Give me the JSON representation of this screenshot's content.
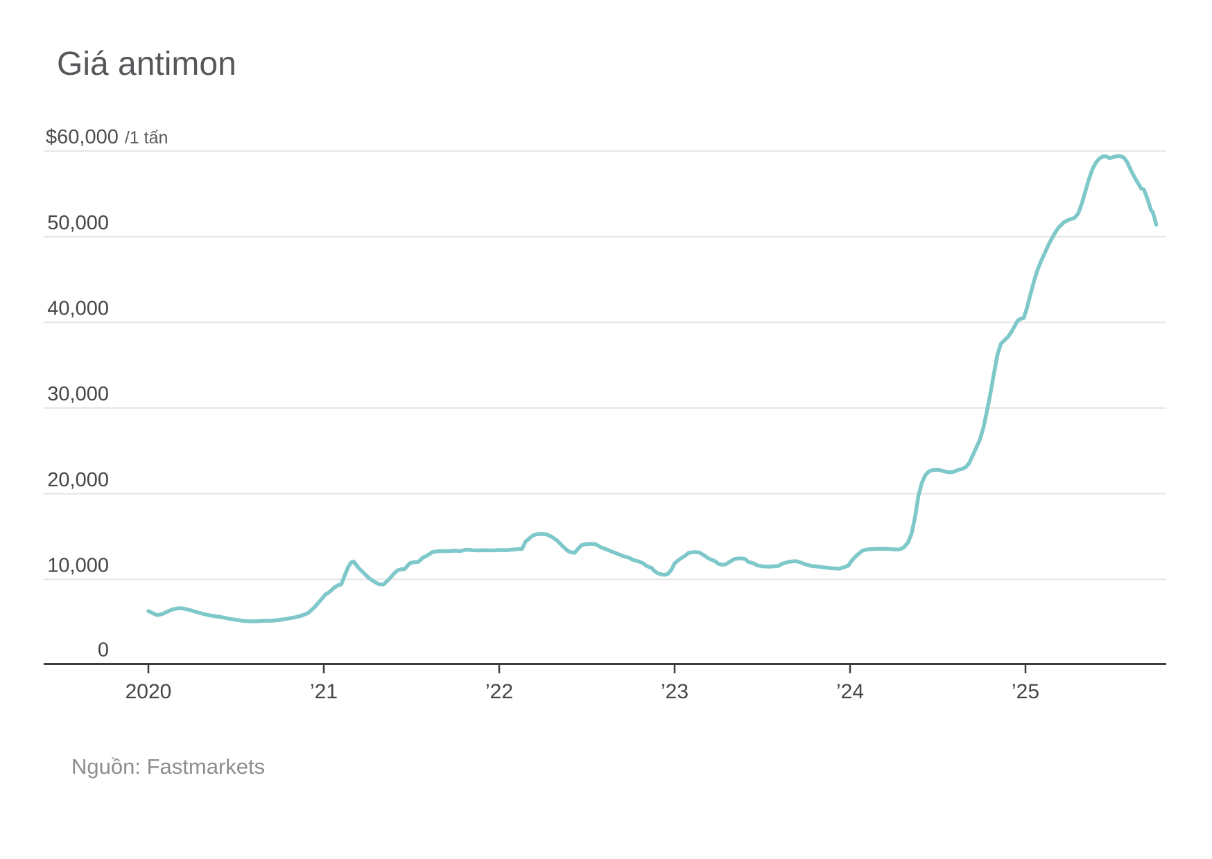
{
  "title": "Giá antimon",
  "source": {
    "text": "Nguồn: Fastmarkets"
  },
  "y_axis": {
    "top_label_value": "$60,000",
    "top_label_unit": "/1 tấn",
    "labels": [
      "50,000",
      "40,000",
      "30,000",
      "20,000",
      "10,000",
      "0"
    ]
  },
  "x_axis": {
    "labels": [
      "2020",
      "’21",
      "’22",
      "’23",
      "’24",
      "’25"
    ]
  },
  "colors": {
    "line": "#7ec8ca",
    "grid": "#e6e6e6",
    "axis": "#3d3d3d",
    "title_text": "#55575b",
    "tick_text": "#454545",
    "source_text": "#8e8e8e"
  },
  "chart_data": {
    "type": "line",
    "title": "Giá antimon",
    "ylabel": "$ /1 tấn",
    "ylim": [
      0,
      60000
    ],
    "ytick_values": [
      0,
      10000,
      20000,
      30000,
      40000,
      50000,
      60000
    ],
    "xtick_labels": [
      "2020",
      "’21",
      "’22",
      "’23",
      "’24",
      "’25"
    ],
    "grid": "horizontal",
    "legend": "none",
    "source": "Nguồn: Fastmarkets",
    "series": [
      {
        "name": "Giá antimon ($ / 1 tấn)",
        "x_unit": "decimal years since 2020-01-01",
        "points": [
          [
            0.0,
            6300
          ],
          [
            0.03,
            6000
          ],
          [
            0.05,
            5830
          ],
          [
            0.08,
            5950
          ],
          [
            0.11,
            6250
          ],
          [
            0.14,
            6500
          ],
          [
            0.17,
            6630
          ],
          [
            0.2,
            6600
          ],
          [
            0.24,
            6400
          ],
          [
            0.28,
            6150
          ],
          [
            0.31,
            5980
          ],
          [
            0.35,
            5800
          ],
          [
            0.38,
            5700
          ],
          [
            0.42,
            5580
          ],
          [
            0.46,
            5400
          ],
          [
            0.5,
            5280
          ],
          [
            0.54,
            5150
          ],
          [
            0.58,
            5100
          ],
          [
            0.62,
            5120
          ],
          [
            0.66,
            5170
          ],
          [
            0.7,
            5170
          ],
          [
            0.74,
            5250
          ],
          [
            0.79,
            5400
          ],
          [
            0.83,
            5550
          ],
          [
            0.87,
            5740
          ],
          [
            0.91,
            6060
          ],
          [
            0.945,
            6710
          ],
          [
            0.98,
            7520
          ],
          [
            1.01,
            8240
          ],
          [
            1.03,
            8490
          ],
          [
            1.06,
            9050
          ],
          [
            1.08,
            9300
          ],
          [
            1.1,
            9430
          ],
          [
            1.12,
            10500
          ],
          [
            1.14,
            11470
          ],
          [
            1.155,
            11960
          ],
          [
            1.17,
            12080
          ],
          [
            1.2,
            11300
          ],
          [
            1.24,
            10500
          ],
          [
            1.26,
            10100
          ],
          [
            1.29,
            9700
          ],
          [
            1.315,
            9420
          ],
          [
            1.34,
            9400
          ],
          [
            1.37,
            9970
          ],
          [
            1.4,
            10670
          ],
          [
            1.42,
            11050
          ],
          [
            1.44,
            11170
          ],
          [
            1.46,
            11200
          ],
          [
            1.49,
            11880
          ],
          [
            1.51,
            12000
          ],
          [
            1.54,
            12050
          ],
          [
            1.565,
            12530
          ],
          [
            1.59,
            12790
          ],
          [
            1.62,
            13200
          ],
          [
            1.66,
            13300
          ],
          [
            1.7,
            13280
          ],
          [
            1.74,
            13350
          ],
          [
            1.78,
            13300
          ],
          [
            1.81,
            13460
          ],
          [
            1.85,
            13400
          ],
          [
            1.88,
            13380
          ],
          [
            1.92,
            13400
          ],
          [
            1.96,
            13380
          ],
          [
            2.0,
            13420
          ],
          [
            2.04,
            13400
          ],
          [
            2.09,
            13500
          ],
          [
            2.13,
            13550
          ],
          [
            2.15,
            14400
          ],
          [
            2.19,
            15100
          ],
          [
            2.21,
            15250
          ],
          [
            2.24,
            15300
          ],
          [
            2.27,
            15250
          ],
          [
            2.3,
            14960
          ],
          [
            2.33,
            14550
          ],
          [
            2.36,
            13900
          ],
          [
            2.39,
            13340
          ],
          [
            2.41,
            13150
          ],
          [
            2.43,
            13100
          ],
          [
            2.45,
            13590
          ],
          [
            2.47,
            14000
          ],
          [
            2.49,
            14100
          ],
          [
            2.52,
            14150
          ],
          [
            2.55,
            14100
          ],
          [
            2.58,
            13750
          ],
          [
            2.6,
            13600
          ],
          [
            2.63,
            13340
          ],
          [
            2.66,
            13100
          ],
          [
            2.68,
            12940
          ],
          [
            2.71,
            12690
          ],
          [
            2.74,
            12530
          ],
          [
            2.76,
            12290
          ],
          [
            2.79,
            12120
          ],
          [
            2.82,
            11880
          ],
          [
            2.84,
            11560
          ],
          [
            2.87,
            11310
          ],
          [
            2.88,
            11070
          ],
          [
            2.9,
            10750
          ],
          [
            2.92,
            10600
          ],
          [
            2.94,
            10530
          ],
          [
            2.96,
            10620
          ],
          [
            2.98,
            11070
          ],
          [
            2.99,
            11470
          ],
          [
            3.0,
            11880
          ],
          [
            3.03,
            12370
          ],
          [
            3.06,
            12770
          ],
          [
            3.08,
            13100
          ],
          [
            3.11,
            13180
          ],
          [
            3.14,
            13150
          ],
          [
            3.17,
            12770
          ],
          [
            3.2,
            12370
          ],
          [
            3.23,
            12120
          ],
          [
            3.25,
            11800
          ],
          [
            3.27,
            11720
          ],
          [
            3.29,
            11750
          ],
          [
            3.32,
            12120
          ],
          [
            3.34,
            12370
          ],
          [
            3.37,
            12450
          ],
          [
            3.4,
            12400
          ],
          [
            3.42,
            12040
          ],
          [
            3.45,
            11880
          ],
          [
            3.47,
            11640
          ],
          [
            3.5,
            11520
          ],
          [
            3.54,
            11480
          ],
          [
            3.59,
            11560
          ],
          [
            3.62,
            11880
          ],
          [
            3.65,
            12040
          ],
          [
            3.68,
            12120
          ],
          [
            3.7,
            12100
          ],
          [
            3.74,
            11800
          ],
          [
            3.78,
            11560
          ],
          [
            3.82,
            11480
          ],
          [
            3.86,
            11380
          ],
          [
            3.9,
            11290
          ],
          [
            3.94,
            11250
          ],
          [
            3.97,
            11450
          ],
          [
            3.99,
            11600
          ],
          [
            4.01,
            12200
          ],
          [
            4.03,
            12650
          ],
          [
            4.05,
            13000
          ],
          [
            4.07,
            13350
          ],
          [
            4.1,
            13500
          ],
          [
            4.14,
            13550
          ],
          [
            4.18,
            13560
          ],
          [
            4.22,
            13550
          ],
          [
            4.25,
            13500
          ],
          [
            4.27,
            13480
          ],
          [
            4.29,
            13550
          ],
          [
            4.31,
            13800
          ],
          [
            4.33,
            14300
          ],
          [
            4.35,
            15300
          ],
          [
            4.37,
            17200
          ],
          [
            4.39,
            19800
          ],
          [
            4.41,
            21300
          ],
          [
            4.43,
            22200
          ],
          [
            4.45,
            22600
          ],
          [
            4.47,
            22750
          ],
          [
            4.5,
            22800
          ],
          [
            4.53,
            22650
          ],
          [
            4.56,
            22500
          ],
          [
            4.59,
            22550
          ],
          [
            4.62,
            22800
          ],
          [
            4.64,
            22900
          ],
          [
            4.66,
            23100
          ],
          [
            4.68,
            23600
          ],
          [
            4.7,
            24500
          ],
          [
            4.72,
            25400
          ],
          [
            4.74,
            26300
          ],
          [
            4.76,
            27700
          ],
          [
            4.78,
            29600
          ],
          [
            4.8,
            31700
          ],
          [
            4.82,
            34000
          ],
          [
            4.84,
            36200
          ],
          [
            4.86,
            37500
          ],
          [
            4.88,
            37900
          ],
          [
            4.9,
            38300
          ],
          [
            4.92,
            38900
          ],
          [
            4.94,
            39600
          ],
          [
            4.955,
            40200
          ],
          [
            4.97,
            40400
          ],
          [
            4.99,
            40500
          ],
          [
            5.01,
            41800
          ],
          [
            5.03,
            43400
          ],
          [
            5.05,
            44900
          ],
          [
            5.07,
            46200
          ],
          [
            5.09,
            47200
          ],
          [
            5.11,
            48100
          ],
          [
            5.13,
            49000
          ],
          [
            5.15,
            49800
          ],
          [
            5.17,
            50500
          ],
          [
            5.19,
            51100
          ],
          [
            5.22,
            51700
          ],
          [
            5.25,
            52000
          ],
          [
            5.28,
            52200
          ],
          [
            5.3,
            52700
          ],
          [
            5.32,
            53800
          ],
          [
            5.34,
            55200
          ],
          [
            5.36,
            56600
          ],
          [
            5.38,
            57800
          ],
          [
            5.4,
            58600
          ],
          [
            5.42,
            59100
          ],
          [
            5.44,
            59350
          ],
          [
            5.46,
            59400
          ],
          [
            5.48,
            59150
          ],
          [
            5.5,
            59300
          ],
          [
            5.52,
            59400
          ],
          [
            5.54,
            59400
          ],
          [
            5.56,
            59250
          ],
          [
            5.58,
            58700
          ],
          [
            5.6,
            57800
          ],
          [
            5.62,
            57000
          ],
          [
            5.64,
            56300
          ],
          [
            5.66,
            55600
          ],
          [
            5.675,
            55500
          ],
          [
            5.69,
            54700
          ],
          [
            5.705,
            53800
          ],
          [
            5.715,
            53100
          ],
          [
            5.725,
            52900
          ],
          [
            5.735,
            52200
          ],
          [
            5.745,
            51400
          ]
        ]
      }
    ]
  }
}
